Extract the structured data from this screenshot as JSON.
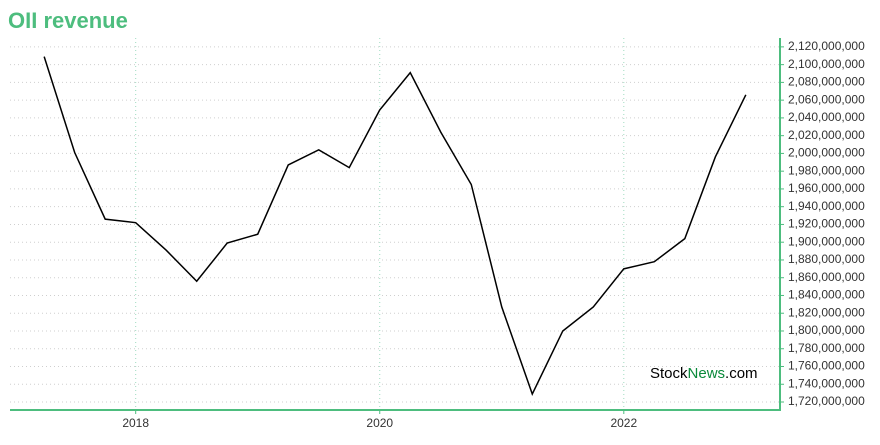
{
  "chart_data": {
    "type": "line",
    "title": "OII revenue",
    "watermark": [
      "Stock",
      "News",
      ".com"
    ],
    "x": [
      2017.25,
      2017.5,
      2017.75,
      2018.0,
      2018.25,
      2018.5,
      2018.75,
      2019.0,
      2019.25,
      2019.5,
      2019.75,
      2020.0,
      2020.25,
      2020.5,
      2020.75,
      2021.0,
      2021.25,
      2021.5,
      2021.75,
      2022.0,
      2022.25,
      2022.5,
      2022.75,
      2023.0
    ],
    "series": [
      {
        "name": "OII revenue",
        "color": "#000000",
        "values": [
          2109000000,
          2001000000,
          1926000000,
          1922000000,
          1891000000,
          1856000000,
          1899000000,
          1909000000,
          1987000000,
          2004000000,
          1984000000,
          2049000000,
          2091000000,
          2024000000,
          1965000000,
          1827000000,
          1729000000,
          1800000000,
          1827000000,
          1870000000,
          1878000000,
          1904000000,
          1996000000,
          2066000000
        ]
      }
    ],
    "xlim": [
      2016.97,
      2023.28
    ],
    "xticks": [
      2018,
      2020,
      2022
    ],
    "ylim": [
      1711000000,
      2130000000
    ],
    "yticks": [
      {
        "value": 1720000000,
        "label": "1,720,000,000"
      },
      {
        "value": 1740000000,
        "label": "1,740,000,000"
      },
      {
        "value": 1760000000,
        "label": "1,760,000,000"
      },
      {
        "value": 1780000000,
        "label": "1,780,000,000"
      },
      {
        "value": 1800000000,
        "label": "1,800,000,000"
      },
      {
        "value": 1820000000,
        "label": "1,820,000,000"
      },
      {
        "value": 1840000000,
        "label": "1,840,000,000"
      },
      {
        "value": 1860000000,
        "label": "1,860,000,000"
      },
      {
        "value": 1880000000,
        "label": "1,880,000,000"
      },
      {
        "value": 1900000000,
        "label": "1,900,000,000"
      },
      {
        "value": 1920000000,
        "label": "1,920,000,000"
      },
      {
        "value": 1940000000,
        "label": "1,940,000,000"
      },
      {
        "value": 1960000000,
        "label": "1,960,000,000"
      },
      {
        "value": 1980000000,
        "label": "1,980,000,000"
      },
      {
        "value": 2000000000,
        "label": "2,000,000,000"
      },
      {
        "value": 2020000000,
        "label": "2,020,000,000"
      },
      {
        "value": 2040000000,
        "label": "2,040,000,000"
      },
      {
        "value": 2060000000,
        "label": "2,060,000,000"
      },
      {
        "value": 2080000000,
        "label": "2,080,000,000"
      },
      {
        "value": 2100000000,
        "label": "2,100,000,000"
      },
      {
        "value": 2120000000,
        "label": "2,120,000,000"
      }
    ],
    "grid": true
  }
}
